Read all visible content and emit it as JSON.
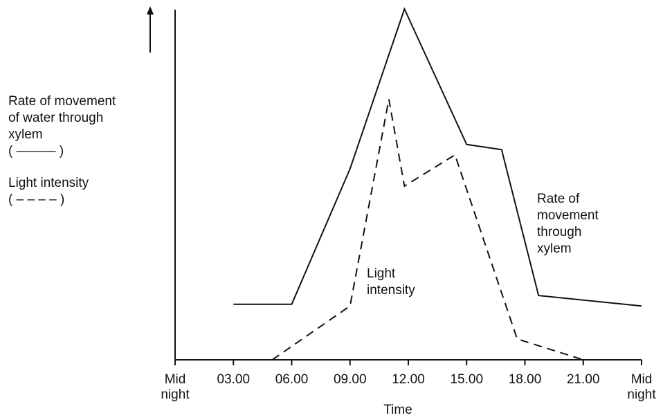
{
  "chart_data": {
    "type": "line",
    "xlabel": "Time",
    "x_ticks": [
      {
        "x": 0,
        "label_lines": [
          "Mid",
          "night"
        ]
      },
      {
        "x": 3,
        "label_lines": [
          "03.00"
        ]
      },
      {
        "x": 6,
        "label_lines": [
          "06.00"
        ]
      },
      {
        "x": 9,
        "label_lines": [
          "09.00"
        ]
      },
      {
        "x": 12,
        "label_lines": [
          "12.00"
        ]
      },
      {
        "x": 15,
        "label_lines": [
          "15.00"
        ]
      },
      {
        "x": 18,
        "label_lines": [
          "18.00"
        ]
      },
      {
        "x": 21,
        "label_lines": [
          "21.00"
        ]
      },
      {
        "x": 24,
        "label_lines": [
          "Mid",
          "night"
        ]
      }
    ],
    "xlim": [
      0,
      24
    ],
    "ylim": [
      0,
      100
    ],
    "y_axis_arrow": true,
    "ylabel_lines": [
      "Rate of movement",
      "of water through",
      "xylem",
      "( ——— )",
      "",
      "Light intensity",
      "( – – – – )"
    ],
    "series": [
      {
        "id": "xylem",
        "style": "solid",
        "color": "#111111",
        "points": [
          [
            3,
            16
          ],
          [
            6,
            16
          ],
          [
            9,
            55
          ],
          [
            11.8,
            101
          ],
          [
            15,
            62
          ],
          [
            16.8,
            60.5
          ],
          [
            18.7,
            18.5
          ],
          [
            24,
            15.5
          ]
        ],
        "annotation_lines": [
          "Rate of",
          "movement",
          "through",
          "xylem"
        ]
      },
      {
        "id": "light",
        "style": "dashed",
        "color": "#111111",
        "points": [
          [
            5,
            0
          ],
          [
            9,
            15.5
          ],
          [
            11,
            75
          ],
          [
            11.8,
            50
          ],
          [
            14.4,
            59
          ],
          [
            17.6,
            6
          ],
          [
            21,
            0
          ]
        ],
        "annotation_lines": [
          "Light",
          "intensity"
        ]
      }
    ]
  }
}
